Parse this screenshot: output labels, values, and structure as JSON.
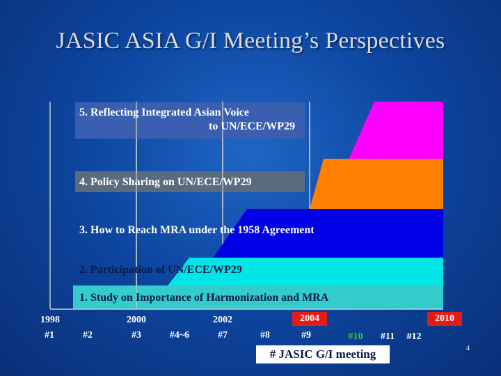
{
  "title": "JASIC ASIA G/I Meeting’s Perspectives",
  "stages": [
    {
      "label_lines": [
        "5. Reflecting Integrated Asian Voice",
        "to UN/ECE/WP29"
      ],
      "color": "#ff00ff",
      "label_bg": "#3a5fb0"
    },
    {
      "label_lines": [
        "4. Policy Sharing on UN/ECE/WP29"
      ],
      "color": "#ff7f00",
      "label_bg": "#5a6b80"
    },
    {
      "label_lines": [
        "3. How to Reach MRA under the 1958 Agreement"
      ],
      "color": "#0000e6",
      "label_bg": "#0000e6"
    },
    {
      "label_lines": [
        "2. Participation of UN/ECE/WP29"
      ],
      "color": "#00e5e5",
      "label_bg": "#00e5e5"
    },
    {
      "label_lines": [
        "1. Study on Importance of Harmonization and MRA"
      ],
      "color": "#33cccc",
      "label_bg": "#33cccc"
    }
  ],
  "years": [
    {
      "text": "1998",
      "highlight": false
    },
    {
      "text": "2000",
      "highlight": false
    },
    {
      "text": "2002",
      "highlight": false
    },
    {
      "text": "2004",
      "highlight": true
    },
    {
      "text": "2010",
      "highlight": true
    }
  ],
  "meetings": [
    {
      "text": "#1",
      "highlight": false
    },
    {
      "text": "#2",
      "highlight": false
    },
    {
      "text": "#3",
      "highlight": false
    },
    {
      "text": "#4~6",
      "highlight": false
    },
    {
      "text": "#7",
      "highlight": false
    },
    {
      "text": "#8",
      "highlight": false
    },
    {
      "text": "#9",
      "highlight": false
    },
    {
      "text": "#10",
      "highlight": true
    },
    {
      "text": "#11",
      "highlight": false
    },
    {
      "text": "#12",
      "highlight": false
    }
  ],
  "legend": "# JASIC G/I meeting",
  "slide_number": "4",
  "colors": {
    "axis_line": "#c8c8c8",
    "year_highlight": "#e21b1b",
    "meeting_highlight": "#22d12a"
  }
}
